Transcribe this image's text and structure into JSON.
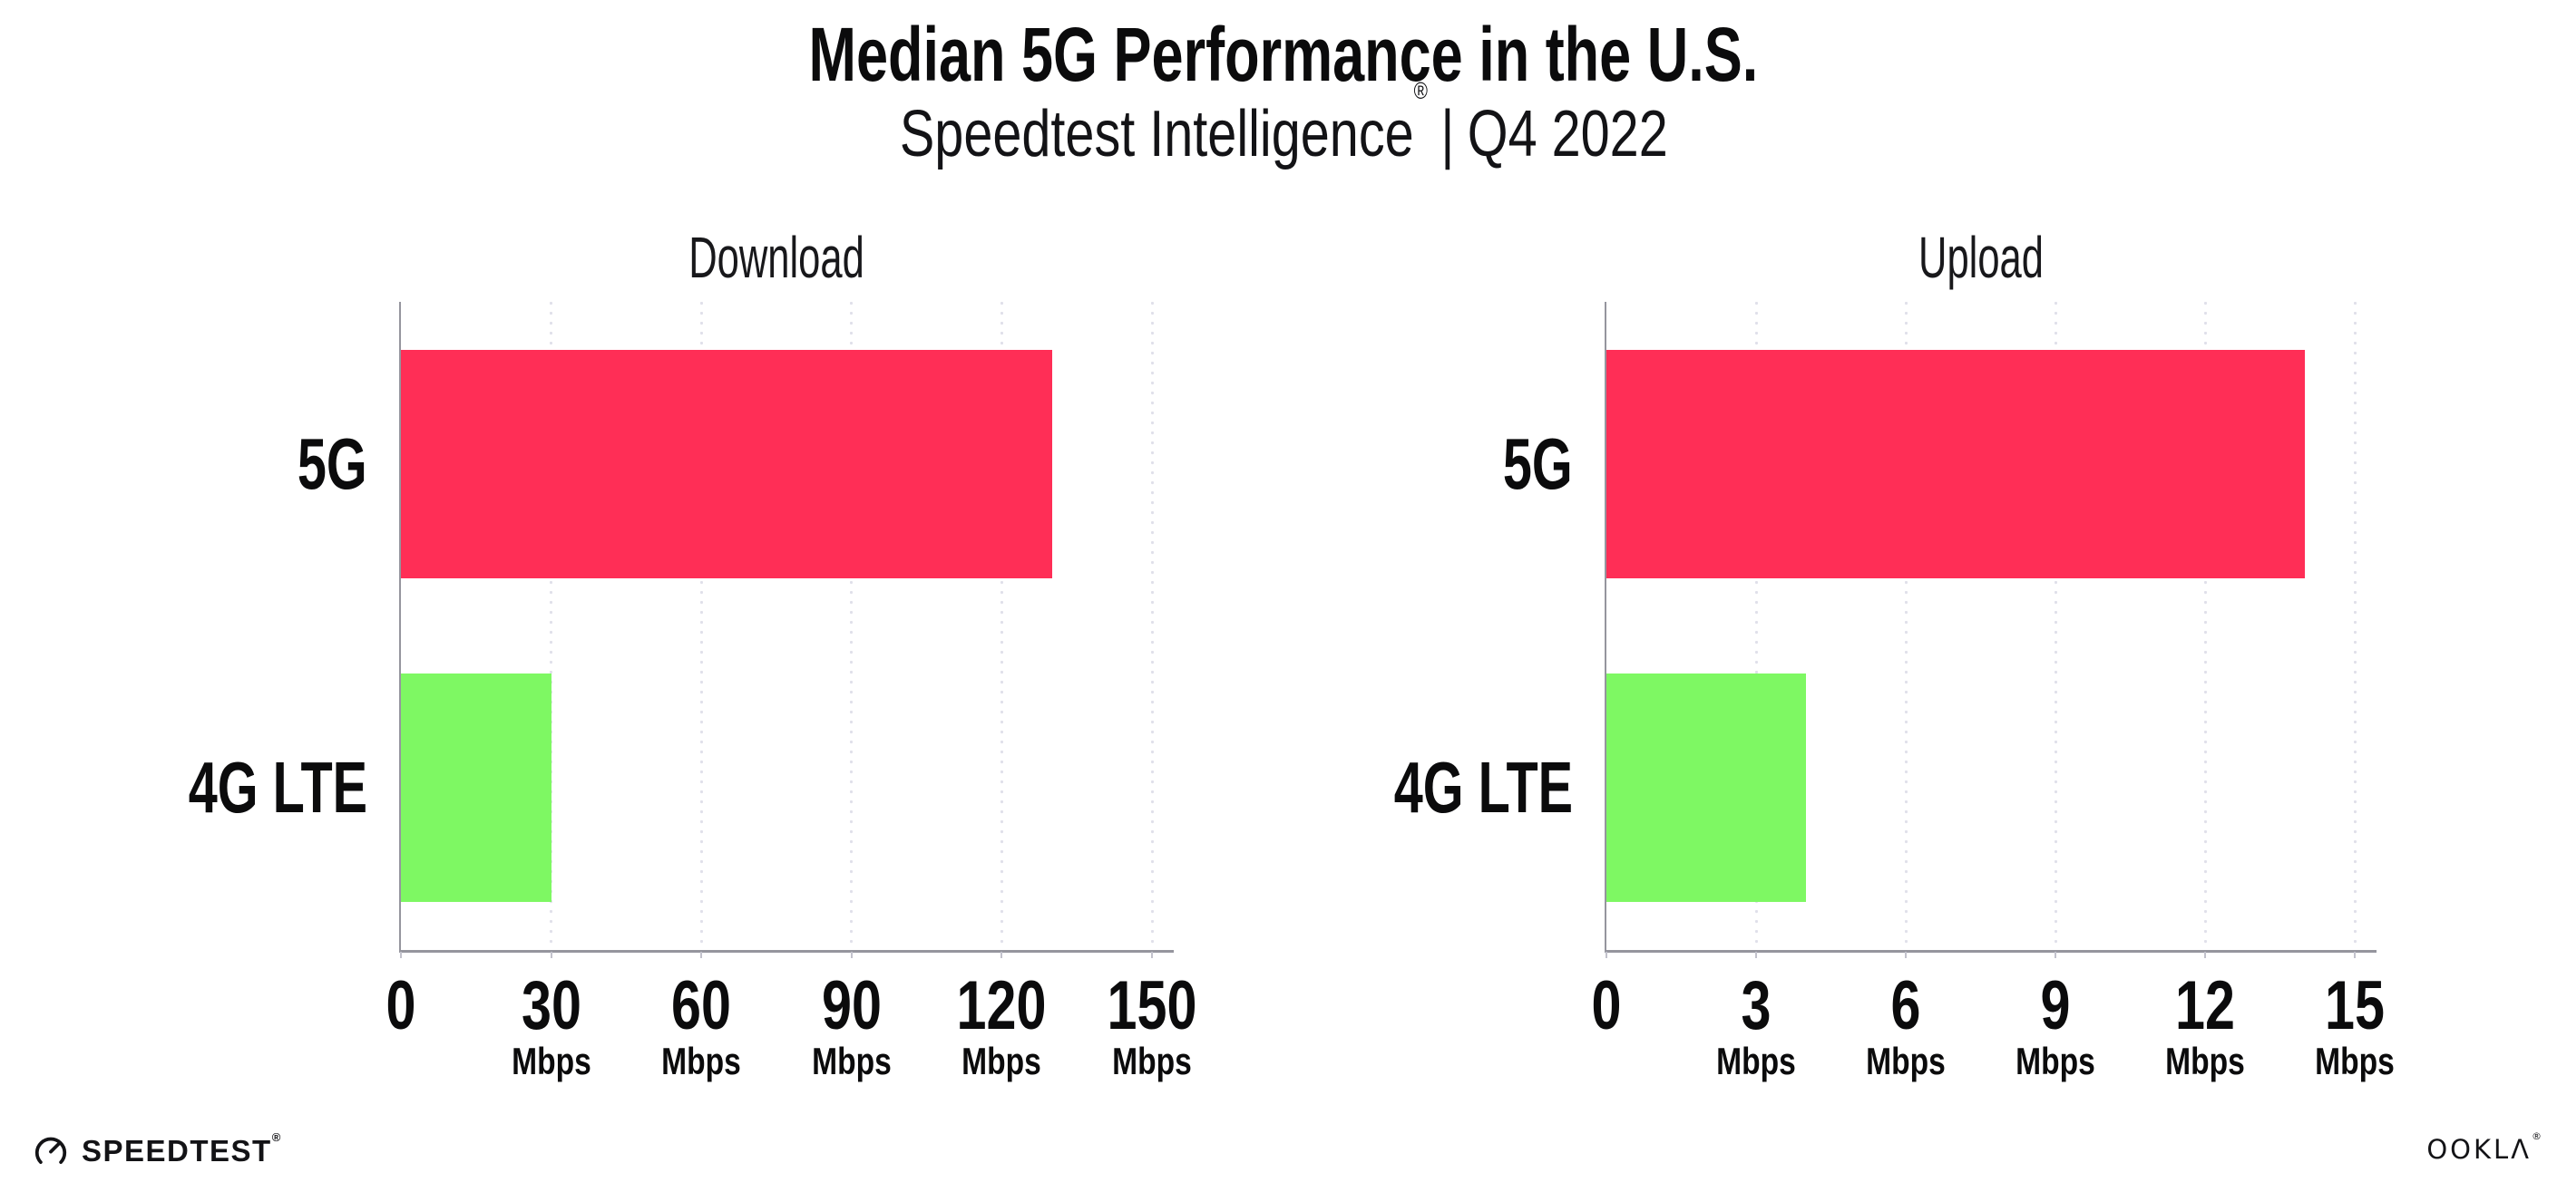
{
  "header": {
    "title": "Median 5G Performance in the U.S.",
    "subtitle_brand": "Speedtest Intelligence",
    "subtitle_reg": "®",
    "subtitle_separator": "|",
    "subtitle_period": "Q4 2022"
  },
  "chart_data": [
    {
      "type": "bar",
      "orientation": "horizontal",
      "title": "Download",
      "categories": [
        "5G",
        "4G LTE"
      ],
      "values": [
        130,
        30
      ],
      "unit": "Mbps",
      "xlim": [
        0,
        150
      ],
      "xticks": [
        0,
        30,
        60,
        90,
        120,
        150
      ],
      "grid": "vertical-dotted",
      "legend": "none",
      "bar_colors": [
        "#ff2e56",
        "#7ef863"
      ]
    },
    {
      "type": "bar",
      "orientation": "horizontal",
      "title": "Upload",
      "categories": [
        "5G",
        "4G LTE"
      ],
      "values": [
        14,
        4
      ],
      "unit": "Mbps",
      "xlim": [
        0,
        15
      ],
      "xticks": [
        0,
        3,
        6,
        9,
        12,
        15
      ],
      "grid": "vertical-dotted",
      "legend": "none",
      "bar_colors": [
        "#ff2e56",
        "#7ef863"
      ]
    }
  ],
  "footer": {
    "speedtest_label": "SPEEDTEST",
    "speedtest_reg": "®",
    "ookla_label": "OOKLΛ",
    "ookla_reg": "®"
  },
  "colors": {
    "bar_5g": "#ff2e56",
    "bar_4g": "#7ef863",
    "axis": "#95959e",
    "grid_dot": "#e0e0ea",
    "tick_mark": "#c2c2cc",
    "text": "#0b0b0c"
  }
}
